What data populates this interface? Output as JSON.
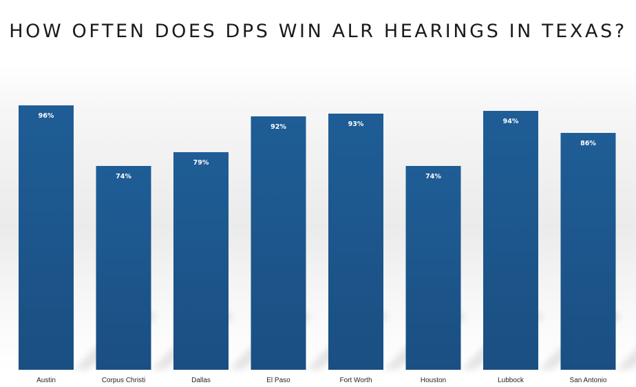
{
  "chart_data": {
    "type": "bar",
    "title": "HOW OFTEN DOES DPS WIN ALR HEARINGS IN TEXAS?",
    "categories": [
      "Austin",
      "Corpus Christi",
      "Dallas",
      "El Paso",
      "Fort Worth",
      "Houston",
      "Lubbock",
      "San Antonio"
    ],
    "values": [
      96,
      74,
      79,
      92,
      93,
      74,
      94,
      86
    ],
    "data_labels": [
      "96%",
      "74%",
      "79%",
      "92%",
      "93%",
      "74%",
      "94%",
      "86%"
    ],
    "unit": "%",
    "xlabel": "",
    "ylabel": "",
    "ylim": [
      0,
      100
    ],
    "grid": false,
    "legend": "none",
    "colors": {
      "bar_top": "#1f5d96",
      "bar_bottom": "#1a4f82",
      "label": "#ffffff",
      "tick": "#222222",
      "title": "#1a1a1a"
    }
  }
}
